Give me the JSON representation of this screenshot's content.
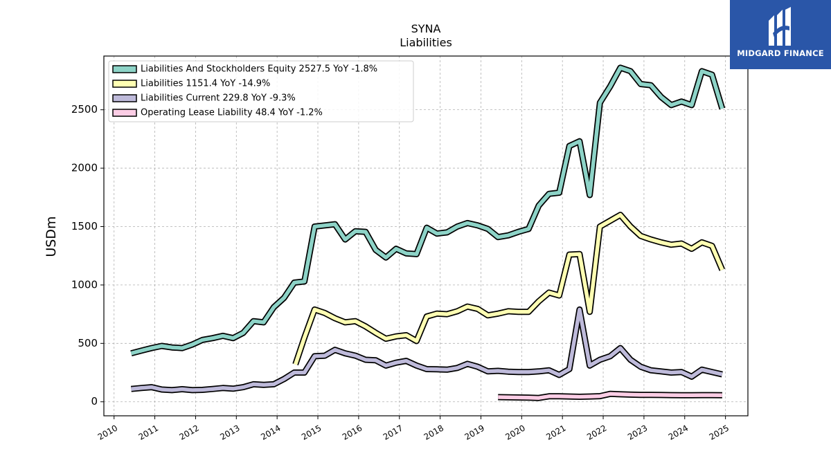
{
  "brand": {
    "name": "MIDGARD FINANCE",
    "color": "#2a56a8"
  },
  "chart_data": {
    "type": "line",
    "title": "SYNA",
    "subtitle": "Liabilities",
    "xlabel": "",
    "ylabel": "USDm",
    "xlim": [
      2009.75,
      2025.55
    ],
    "ylim": [
      -120,
      2960
    ],
    "x_ticks": [
      "2010",
      "2011",
      "2012",
      "2013",
      "2014",
      "2015",
      "2016",
      "2017",
      "2018",
      "2019",
      "2020",
      "2021",
      "2022",
      "2023",
      "2024",
      "2025"
    ],
    "y_ticks": [
      0,
      500,
      1000,
      1500,
      2000,
      2500
    ],
    "grid": true,
    "legend_position": "top-left",
    "series": [
      {
        "name": "Liabilities And Stockholders Equity",
        "legend": "Liabilities And Stockholders Equity  2527.5 YoY -1.8%",
        "color": "#8dd3c7",
        "x": [
          2010.42,
          2010.67,
          2010.92,
          2011.17,
          2011.42,
          2011.67,
          2011.92,
          2012.17,
          2012.42,
          2012.67,
          2012.92,
          2013.17,
          2013.42,
          2013.67,
          2013.92,
          2014.17,
          2014.42,
          2014.67,
          2014.92,
          2015.17,
          2015.42,
          2015.67,
          2015.92,
          2016.17,
          2016.42,
          2016.67,
          2016.92,
          2017.17,
          2017.42,
          2017.67,
          2017.92,
          2018.17,
          2018.42,
          2018.67,
          2018.92,
          2019.17,
          2019.42,
          2019.67,
          2019.92,
          2020.17,
          2020.42,
          2020.67,
          2020.92,
          2021.17,
          2021.42,
          2021.67,
          2021.92,
          2022.17,
          2022.42,
          2022.67,
          2022.92,
          2023.17,
          2023.42,
          2023.67,
          2023.92,
          2024.17,
          2024.42,
          2024.67,
          2024.92
        ],
        "y": [
          415,
          438,
          460,
          478,
          465,
          460,
          490,
          530,
          545,
          565,
          545,
          590,
          690,
          680,
          810,
          890,
          1020,
          1030,
          1500,
          1510,
          1520,
          1390,
          1460,
          1455,
          1300,
          1235,
          1310,
          1270,
          1265,
          1490,
          1440,
          1450,
          1500,
          1530,
          1510,
          1480,
          1410,
          1425,
          1455,
          1480,
          1680,
          1780,
          1790,
          2190,
          2230,
          1770,
          2560,
          2700,
          2860,
          2830,
          2720,
          2710,
          2610,
          2540,
          2570,
          2540,
          2830,
          2800,
          2510
        ]
      },
      {
        "name": "Liabilities",
        "legend": "Liabilities  1151.4 YoY -14.9%",
        "color": "#ffffb3",
        "x": [
          2014.45,
          2014.67,
          2014.92,
          2015.17,
          2015.42,
          2015.67,
          2015.92,
          2016.17,
          2016.42,
          2016.67,
          2016.92,
          2017.17,
          2017.42,
          2017.67,
          2017.92,
          2018.17,
          2018.42,
          2018.67,
          2018.92,
          2019.17,
          2019.42,
          2019.67,
          2019.92,
          2020.17,
          2020.42,
          2020.67,
          2020.92,
          2021.17,
          2021.42,
          2021.67,
          2021.92,
          2022.17,
          2022.42,
          2022.67,
          2022.92,
          2023.17,
          2023.42,
          2023.67,
          2023.92,
          2024.17,
          2024.42,
          2024.67,
          2024.92
        ],
        "y": [
          320,
          550,
          790,
          760,
          715,
          680,
          690,
          645,
          590,
          540,
          560,
          570,
          520,
          730,
          755,
          750,
          775,
          815,
          795,
          740,
          755,
          775,
          770,
          770,
          860,
          935,
          910,
          1260,
          1265,
          770,
          1500,
          1550,
          1600,
          1500,
          1420,
          1390,
          1365,
          1345,
          1355,
          1310,
          1365,
          1335,
          1130
        ]
      },
      {
        "name": "Liabilities Current",
        "legend": "Liabilities Current  229.8 YoY -9.3%",
        "color": "#bebada",
        "x": [
          2010.42,
          2010.67,
          2010.92,
          2011.17,
          2011.42,
          2011.67,
          2011.92,
          2012.17,
          2012.42,
          2012.67,
          2012.92,
          2013.17,
          2013.42,
          2013.67,
          2013.92,
          2014.17,
          2014.42,
          2014.67,
          2014.92,
          2015.17,
          2015.42,
          2015.67,
          2015.92,
          2016.17,
          2016.42,
          2016.67,
          2016.92,
          2017.17,
          2017.42,
          2017.67,
          2017.92,
          2018.17,
          2018.42,
          2018.67,
          2018.92,
          2019.17,
          2019.42,
          2019.67,
          2019.92,
          2020.17,
          2020.42,
          2020.67,
          2020.92,
          2021.17,
          2021.42,
          2021.67,
          2021.92,
          2022.17,
          2022.42,
          2022.67,
          2022.92,
          2023.17,
          2023.42,
          2023.67,
          2023.92,
          2024.17,
          2024.42,
          2024.67,
          2024.92
        ],
        "y": [
          110,
          118,
          125,
          105,
          100,
          108,
          100,
          102,
          110,
          118,
          112,
          125,
          150,
          145,
          150,
          195,
          250,
          250,
          390,
          395,
          445,
          415,
          395,
          360,
          355,
          310,
          335,
          350,
          310,
          280,
          278,
          275,
          290,
          325,
          300,
          260,
          265,
          258,
          255,
          255,
          260,
          270,
          230,
          280,
          790,
          310,
          360,
          390,
          460,
          360,
          300,
          270,
          260,
          250,
          255,
          215,
          275,
          255,
          235
        ]
      },
      {
        "name": "Operating Lease Liability",
        "legend": "Operating Lease Liability  48.4 YoY -1.2%",
        "color": "#fccde5",
        "x": [
          2019.42,
          2019.67,
          2019.92,
          2020.17,
          2020.42,
          2020.67,
          2020.92,
          2021.17,
          2021.42,
          2021.67,
          2021.92,
          2022.17,
          2022.42,
          2022.67,
          2022.92,
          2023.17,
          2023.42,
          2023.67,
          2023.92,
          2024.17,
          2024.42,
          2024.67,
          2024.92
        ],
        "y": [
          40,
          38,
          37,
          35,
          33,
          47,
          47,
          45,
          43,
          45,
          48,
          68,
          64,
          61,
          59,
          59,
          58,
          57,
          56,
          56,
          57,
          57,
          56
        ]
      }
    ]
  }
}
